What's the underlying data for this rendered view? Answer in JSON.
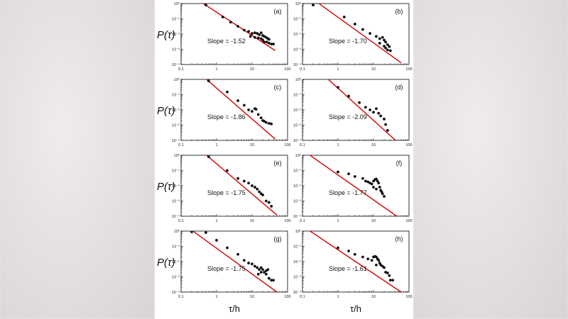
{
  "colors": {
    "fit_line": "#d40000",
    "points": "#111111",
    "axes": "#000000"
  },
  "ylabel_text": "P(τ)",
  "xlabel_text": "τ/h",
  "chart_data": [
    {
      "type": "scatter",
      "panel": "(a)",
      "annotation": "Slope = -1.52",
      "xscale": "log",
      "yscale": "log",
      "xlim": [
        0.1,
        100
      ],
      "ylim": [
        0.0001,
        1
      ],
      "xticks": [
        "0.1",
        "1",
        "10",
        "100"
      ],
      "yticks": [
        "10⁰",
        "10⁻¹",
        "10⁻²",
        "10⁻³",
        "10⁻⁴"
      ],
      "fit": {
        "slope": -1.52,
        "x": [
          0.4,
          45
        ],
        "y": [
          1.1,
          0.00082
        ]
      },
      "points": [
        [
          0.5,
          0.8
        ],
        [
          1.5,
          0.13
        ],
        [
          2.5,
          0.06
        ],
        [
          4,
          0.032
        ],
        [
          6,
          0.018
        ],
        [
          8,
          0.015
        ],
        [
          10,
          0.011
        ],
        [
          12,
          0.012
        ],
        [
          14,
          0.011
        ],
        [
          16,
          0.009
        ],
        [
          18,
          0.012
        ],
        [
          20,
          0.008
        ],
        [
          22,
          0.007
        ],
        [
          25,
          0.006
        ],
        [
          28,
          0.005
        ],
        [
          30,
          0.0045
        ],
        [
          26,
          0.003
        ],
        [
          30,
          0.0025
        ],
        [
          35,
          0.0022
        ],
        [
          40,
          0.0022
        ],
        [
          15,
          0.0055
        ],
        [
          18,
          0.005
        ],
        [
          20,
          0.004
        ],
        [
          12,
          0.006
        ],
        [
          9,
          0.007
        ],
        [
          22,
          0.003
        ]
      ]
    },
    {
      "type": "scatter",
      "panel": "(b)",
      "annotation": "Slope = -1.70",
      "xscale": "log",
      "yscale": "log",
      "xlim": [
        0.1,
        100
      ],
      "ylim": [
        0.0001,
        1
      ],
      "xticks": [
        "0.1",
        "1",
        "10",
        "100"
      ],
      "yticks": [
        "10⁰",
        "10⁻¹",
        "10⁻²",
        "10⁻³",
        "10⁻⁴"
      ],
      "fit": {
        "slope": -1.7,
        "x": [
          0.25,
          60
        ],
        "y": [
          1.3,
          0.00013
        ]
      },
      "points": [
        [
          0.2,
          0.8
        ],
        [
          1.5,
          0.13
        ],
        [
          3,
          0.045
        ],
        [
          5,
          0.02
        ],
        [
          8,
          0.011
        ],
        [
          12,
          0.007
        ],
        [
          15,
          0.005
        ],
        [
          18,
          0.006
        ],
        [
          20,
          0.004
        ],
        [
          22,
          0.003
        ],
        [
          25,
          0.002
        ],
        [
          28,
          0.0015
        ],
        [
          30,
          0.0008
        ],
        [
          22,
          0.0012
        ],
        [
          25,
          0.0009
        ],
        [
          20,
          0.0016
        ],
        [
          15,
          0.0025
        ]
      ]
    },
    {
      "type": "scatter",
      "panel": "(c)",
      "annotation": "Slope = -1.86",
      "xscale": "log",
      "yscale": "log",
      "xlim": [
        0.1,
        100
      ],
      "ylim": [
        0.0001,
        1
      ],
      "xticks": [
        "0.1",
        "1",
        "10",
        "100"
      ],
      "yticks": [
        "10⁰",
        "10⁻¹",
        "10⁻²",
        "10⁻³",
        "10⁻⁴"
      ],
      "fit": {
        "slope": -1.86,
        "x": [
          0.5,
          45
        ],
        "y": [
          1.1,
          0.00012
        ]
      },
      "points": [
        [
          0.6,
          0.8
        ],
        [
          2,
          0.15
        ],
        [
          4,
          0.04
        ],
        [
          6,
          0.02
        ],
        [
          8,
          0.01
        ],
        [
          10,
          0.008
        ],
        [
          12,
          0.012
        ],
        [
          13,
          0.011
        ],
        [
          15,
          0.005
        ],
        [
          18,
          0.003
        ],
        [
          20,
          0.002
        ],
        [
          22,
          0.0018
        ],
        [
          25,
          0.0015
        ],
        [
          30,
          0.0013
        ],
        [
          35,
          0.0012
        ]
      ]
    },
    {
      "type": "scatter",
      "panel": "(d)",
      "annotation": "Slope = -2.09",
      "xscale": "log",
      "yscale": "log",
      "xlim": [
        0.1,
        100
      ],
      "ylim": [
        0.0001,
        1
      ],
      "xticks": [
        "0.1",
        "1",
        "10",
        "100"
      ],
      "yticks": [
        "10⁰",
        "10⁻¹",
        "10⁻²",
        "10⁻³",
        "10⁻⁴"
      ],
      "fit": {
        "slope": -2.09,
        "x": [
          0.5,
          42
        ],
        "y": [
          1.15,
          0.0001
        ]
      },
      "points": [
        [
          1,
          0.3
        ],
        [
          2,
          0.08
        ],
        [
          4,
          0.03
        ],
        [
          6,
          0.015
        ],
        [
          8,
          0.01
        ],
        [
          10,
          0.007
        ],
        [
          12,
          0.012
        ],
        [
          14,
          0.006
        ],
        [
          16,
          0.004
        ],
        [
          20,
          0.0025
        ],
        [
          22,
          0.0011
        ],
        [
          25,
          0.00045
        ]
      ]
    },
    {
      "type": "scatter",
      "panel": "(e)",
      "annotation": "Slope = -1.75",
      "xscale": "log",
      "yscale": "log",
      "xlim": [
        0.1,
        100
      ],
      "ylim": [
        0.0001,
        1
      ],
      "xticks": [
        "0.1",
        "1",
        "10",
        "100"
      ],
      "yticks": [
        "10⁰",
        "10⁻¹",
        "10⁻²",
        "10⁻³",
        "10⁻⁴"
      ],
      "fit": {
        "slope": -1.75,
        "x": [
          0.5,
          50
        ],
        "y": [
          1.1,
          0.00012
        ]
      },
      "points": [
        [
          0.6,
          0.8
        ],
        [
          2,
          0.1
        ],
        [
          4,
          0.03
        ],
        [
          6,
          0.02
        ],
        [
          8,
          0.015
        ],
        [
          10,
          0.01
        ],
        [
          12,
          0.008
        ],
        [
          14,
          0.006
        ],
        [
          16,
          0.004
        ],
        [
          18,
          0.003
        ],
        [
          20,
          0.0025
        ],
        [
          25,
          0.001
        ],
        [
          30,
          0.0008
        ],
        [
          35,
          0.00045
        ]
      ]
    },
    {
      "type": "scatter",
      "panel": "(f)",
      "annotation": "Slope = -1.77",
      "xscale": "log",
      "yscale": "log",
      "xlim": [
        0.1,
        100
      ],
      "ylim": [
        0.0001,
        1
      ],
      "xticks": [
        "0.1",
        "1",
        "10",
        "100"
      ],
      "yticks": [
        "10⁰",
        "10⁻¹",
        "10⁻²",
        "10⁻³",
        "10⁻⁴"
      ],
      "fit": {
        "slope": -1.77,
        "x": [
          0.15,
          45
        ],
        "y": [
          1.15,
          0.0001
        ]
      },
      "points": [
        [
          1,
          0.08
        ],
        [
          2,
          0.06
        ],
        [
          3,
          0.04
        ],
        [
          5,
          0.03
        ],
        [
          6,
          0.02
        ],
        [
          7,
          0.018
        ],
        [
          8,
          0.015
        ],
        [
          9,
          0.013
        ],
        [
          10,
          0.02
        ],
        [
          11,
          0.025
        ],
        [
          12,
          0.028
        ],
        [
          13,
          0.02
        ],
        [
          14,
          0.015
        ],
        [
          15,
          0.008
        ],
        [
          16,
          0.005
        ],
        [
          17,
          0.004
        ],
        [
          18,
          0.003
        ],
        [
          20,
          0.002
        ],
        [
          12,
          0.006
        ],
        [
          10,
          0.008
        ]
      ]
    },
    {
      "type": "scatter",
      "panel": "(g)",
      "annotation": "Slope = -1.75",
      "xscale": "log",
      "yscale": "log",
      "xlim": [
        0.1,
        100
      ],
      "ylim": [
        0.0001,
        1
      ],
      "xticks": [
        "0.1",
        "1",
        "10",
        "100"
      ],
      "yticks": [
        "10⁰",
        "10⁻¹",
        "10⁻²",
        "10⁻³",
        "10⁻⁴"
      ],
      "fit": {
        "slope": -1.75,
        "x": [
          0.2,
          50
        ],
        "y": [
          1.15,
          0.0001
        ]
      },
      "points": [
        [
          0.2,
          0.9
        ],
        [
          0.5,
          0.8
        ],
        [
          1,
          0.25
        ],
        [
          2,
          0.08
        ],
        [
          4,
          0.03
        ],
        [
          6,
          0.012
        ],
        [
          8,
          0.008
        ],
        [
          10,
          0.007
        ],
        [
          12,
          0.005
        ],
        [
          14,
          0.004
        ],
        [
          16,
          0.003
        ],
        [
          18,
          0.004
        ],
        [
          20,
          0.003
        ],
        [
          22,
          0.002
        ],
        [
          25,
          0.0015
        ],
        [
          28,
          0.003
        ],
        [
          30,
          0.0008
        ],
        [
          35,
          0.0006
        ],
        [
          40,
          0.0006
        ],
        [
          25,
          0.0025
        ],
        [
          18,
          0.002
        ],
        [
          15,
          0.0015
        ]
      ]
    },
    {
      "type": "scatter",
      "panel": "(h)",
      "annotation": "Slope = -1.61",
      "xscale": "log",
      "yscale": "log",
      "xlim": [
        0.1,
        100
      ],
      "ylim": [
        0.0001,
        1
      ],
      "xticks": [
        "0.1",
        "1",
        "10",
        "100"
      ],
      "yticks": [
        "10⁰",
        "10⁻¹",
        "10⁻²",
        "10⁻³",
        "10⁻⁴"
      ],
      "fit": {
        "slope": -1.61,
        "x": [
          0.15,
          60
        ],
        "y": [
          1.15,
          0.0001
        ]
      },
      "points": [
        [
          1,
          0.08
        ],
        [
          2,
          0.05
        ],
        [
          3,
          0.03
        ],
        [
          5,
          0.02
        ],
        [
          7,
          0.015
        ],
        [
          9,
          0.012
        ],
        [
          10,
          0.02
        ],
        [
          11,
          0.022
        ],
        [
          12,
          0.02
        ],
        [
          13,
          0.015
        ],
        [
          14,
          0.012
        ],
        [
          15,
          0.008
        ],
        [
          16,
          0.006
        ],
        [
          18,
          0.005
        ],
        [
          20,
          0.004
        ],
        [
          22,
          0.002
        ],
        [
          25,
          0.0018
        ],
        [
          30,
          0.0006
        ],
        [
          35,
          0.0006
        ],
        [
          28,
          0.0012
        ],
        [
          12,
          0.006
        ]
      ]
    }
  ]
}
